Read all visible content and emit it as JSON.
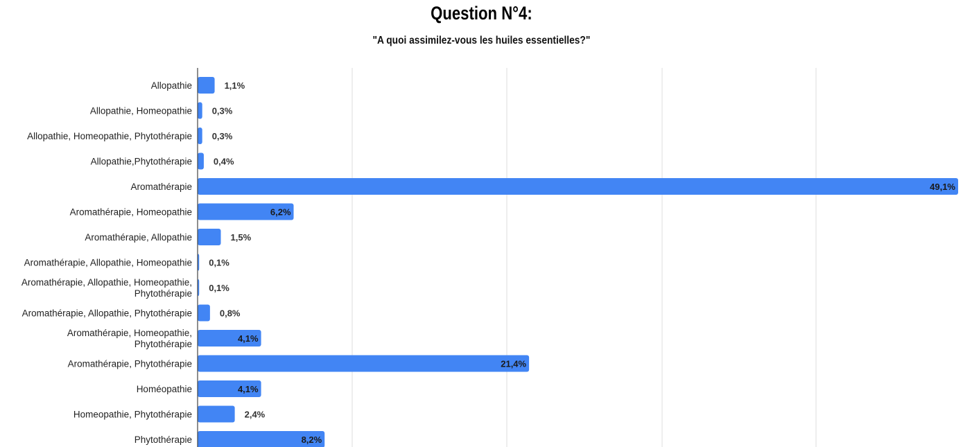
{
  "chart_data": {
    "type": "bar",
    "orientation": "horizontal",
    "title": "Question N°4:",
    "subtitle": "\"A quoi assimilez-vous les huiles essentielles?\"",
    "xlim": [
      0,
      49.1
    ],
    "grid": true,
    "bar_color": "#4285f4",
    "categories": [
      "Allopathie",
      "Allopathie, Homeopathie",
      "Allopathie, Homeopathie, Phytothérapie",
      "Allopathie,Phytothérapie",
      "Aromathérapie",
      "Aromathérapie,  Homeopathie",
      "Aromathérapie, Allopathie",
      "Aromathérapie, Allopathie, Homeopathie",
      "Aromathérapie, Allopathie, Homeopathie, Phytothérapie",
      "Aromathérapie, Allopathie, Phytothérapie",
      "Aromathérapie, Homeopathie, Phytothérapie",
      "Aromathérapie, Phytothérapie",
      "Homéopathie",
      "Homeopathie, Phytothérapie",
      "Phytothérapie"
    ],
    "category_lines": [
      [
        "Allopathie"
      ],
      [
        "Allopathie, Homeopathie"
      ],
      [
        "Allopathie, Homeopathie, Phytothérapie"
      ],
      [
        "Allopathie,Phytothérapie"
      ],
      [
        "Aromathérapie"
      ],
      [
        "Aromathérapie,  Homeopathie"
      ],
      [
        "Aromathérapie, Allopathie"
      ],
      [
        "Aromathérapie, Allopathie, Homeopathie"
      ],
      [
        "Aromathérapie, Allopathie, Homeopathie,",
        "Phytothérapie"
      ],
      [
        "Aromathérapie, Allopathie, Phytothérapie"
      ],
      [
        "Aromathérapie, Homeopathie,",
        "Phytothérapie"
      ],
      [
        "Aromathérapie, Phytothérapie"
      ],
      [
        "Homéopathie"
      ],
      [
        "Homeopathie, Phytothérapie"
      ],
      [
        "Phytothérapie"
      ]
    ],
    "values": [
      1.1,
      0.3,
      0.3,
      0.4,
      49.1,
      6.2,
      1.5,
      0.1,
      0.1,
      0.8,
      4.1,
      21.4,
      4.1,
      2.4,
      8.2
    ],
    "data_labels": [
      "1,1%",
      "0,3%",
      "0,3%",
      "0,4%",
      "49,1%",
      "6,2%",
      "1,5%",
      "0,1%",
      "0,1%",
      "0,8%",
      "4,1%",
      "21,4%",
      "4,1%",
      "2,4%",
      "8,2%"
    ]
  }
}
